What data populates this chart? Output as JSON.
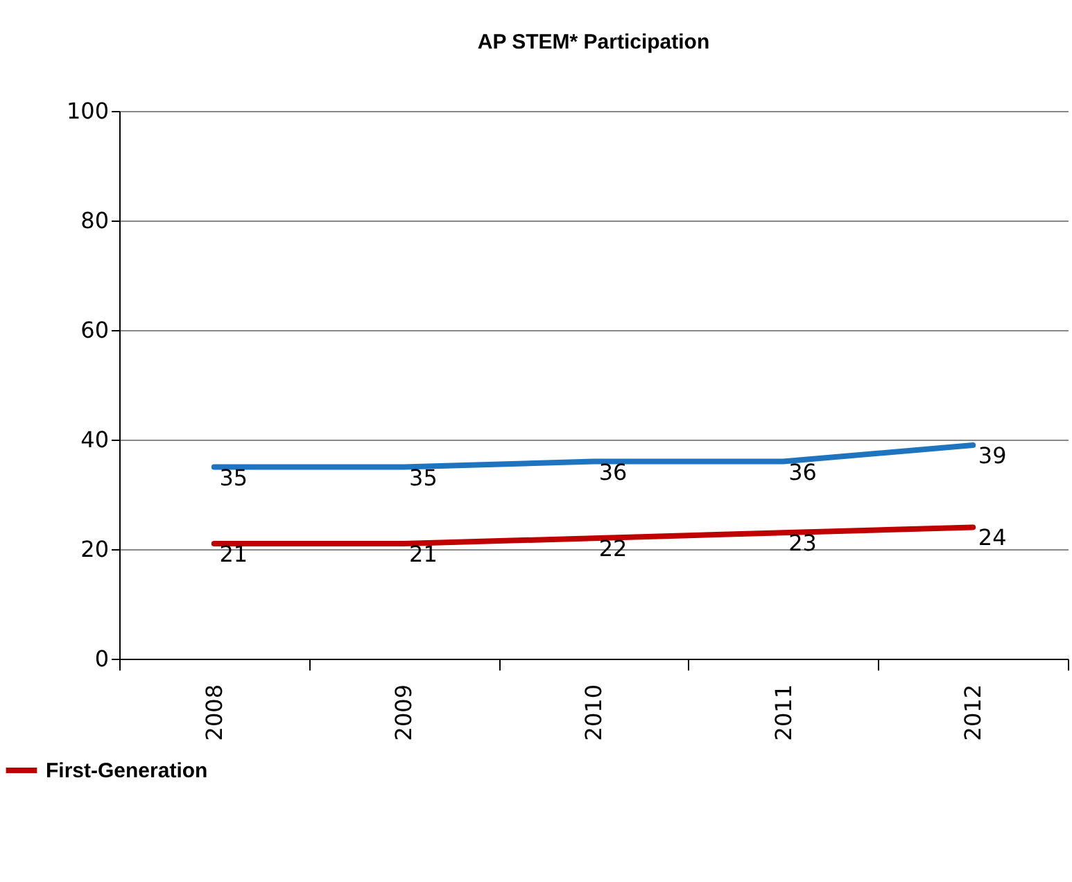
{
  "chart_data": {
    "type": "line",
    "title": "AP STEM* Participation",
    "categories": [
      "2008",
      "2009",
      "2010",
      "2011",
      "2012"
    ],
    "series": [
      {
        "color": "#1f74c0",
        "values": [
          35,
          35,
          36,
          36,
          39
        ]
      },
      {
        "name": "First-Generation",
        "color": "#c00000",
        "values": [
          21,
          21,
          22,
          23,
          24
        ]
      }
    ],
    "ylim": [
      0,
      100
    ],
    "yticks": [
      0,
      20,
      40,
      60,
      80,
      100
    ],
    "grid": "y",
    "data_labels": true,
    "legend": "bottom left",
    "marker": "none",
    "line_style": "solid"
  }
}
